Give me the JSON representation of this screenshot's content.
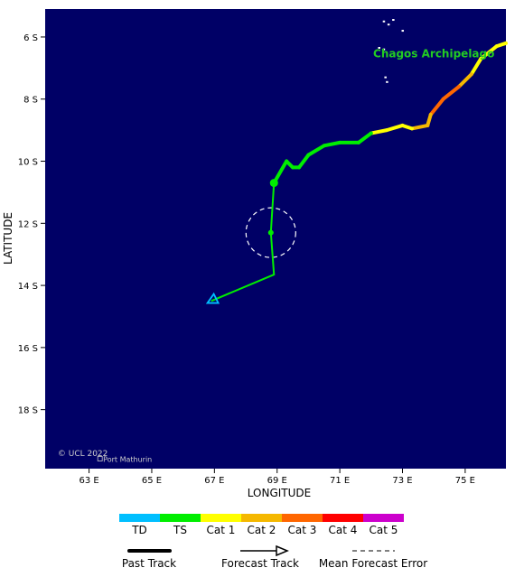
{
  "map": {
    "background_color": "#000066",
    "xlabel": "LONGITUDE",
    "ylabel": "LATITUDE",
    "lon_range": [
      61.6,
      76.3
    ],
    "lat_range": [
      -19.9,
      -5.1
    ],
    "lon_ticks": [
      {
        "value": 63,
        "label": "63 E"
      },
      {
        "value": 65,
        "label": "65 E"
      },
      {
        "value": 67,
        "label": "67 E"
      },
      {
        "value": 69,
        "label": "69 E"
      },
      {
        "value": 71,
        "label": "71 E"
      },
      {
        "value": 73,
        "label": "73 E"
      },
      {
        "value": 75,
        "label": "75 E"
      }
    ],
    "lat_ticks": [
      {
        "value": -6,
        "label": "6 S"
      },
      {
        "value": -8,
        "label": "8 S"
      },
      {
        "value": -10,
        "label": "10 S"
      },
      {
        "value": -12,
        "label": "12 S"
      },
      {
        "value": -14,
        "label": "14 S"
      },
      {
        "value": -16,
        "label": "16 S"
      },
      {
        "value": -18,
        "label": "18 S"
      }
    ],
    "region_label": {
      "text": "Chagos Archipelago",
      "lon": 74.0,
      "lat": -6.65,
      "color": "#22cc22"
    },
    "place_label": {
      "text": "Port Mathurin",
      "lon": 63.45,
      "lat": -19.68
    },
    "copyright": {
      "text": "© UCL 2022",
      "lon": 62.0,
      "lat": -19.5
    },
    "islands": [
      {
        "lon": 72.4,
        "lat": -5.5
      },
      {
        "lon": 72.7,
        "lat": -5.45
      },
      {
        "lon": 72.55,
        "lat": -5.6
      },
      {
        "lon": 73.0,
        "lat": -5.8
      },
      {
        "lon": 72.4,
        "lat": -6.4
      },
      {
        "lon": 72.25,
        "lat": -6.35
      },
      {
        "lon": 72.45,
        "lat": -7.3
      },
      {
        "lon": 72.5,
        "lat": -7.45
      }
    ]
  },
  "track": {
    "past": [
      {
        "lon": 76.3,
        "lat": -6.2,
        "cat": "Cat 1"
      },
      {
        "lon": 76.0,
        "lat": -6.3,
        "cat": "Cat 1"
      },
      {
        "lon": 75.5,
        "lat": -6.7,
        "cat": "Cat 1"
      },
      {
        "lon": 75.2,
        "lat": -7.2,
        "cat": "Cat 2"
      },
      {
        "lon": 74.8,
        "lat": -7.6,
        "cat": "Cat 3"
      },
      {
        "lon": 74.3,
        "lat": -8.0,
        "cat": "Cat 3"
      },
      {
        "lon": 73.9,
        "lat": -8.5,
        "cat": "Cat 2"
      },
      {
        "lon": 73.8,
        "lat": -8.85,
        "cat": "Cat 2"
      },
      {
        "lon": 73.3,
        "lat": -8.95,
        "cat": "Cat 1"
      },
      {
        "lon": 73.0,
        "lat": -8.85,
        "cat": "Cat 1"
      },
      {
        "lon": 72.5,
        "lat": -9.0,
        "cat": "Cat 1"
      },
      {
        "lon": 72.0,
        "lat": -9.1,
        "cat": "TS"
      },
      {
        "lon": 71.6,
        "lat": -9.4,
        "cat": "TS"
      },
      {
        "lon": 71.0,
        "lat": -9.4,
        "cat": "TS"
      },
      {
        "lon": 70.5,
        "lat": -9.5,
        "cat": "TS"
      },
      {
        "lon": 70.0,
        "lat": -9.8,
        "cat": "TS"
      },
      {
        "lon": 69.7,
        "lat": -10.2,
        "cat": "TS"
      },
      {
        "lon": 69.5,
        "lat": -10.2,
        "cat": "TS"
      },
      {
        "lon": 69.3,
        "lat": -10.0,
        "cat": "TS"
      },
      {
        "lon": 68.9,
        "lat": -10.7,
        "cat": "TS"
      }
    ],
    "current": {
      "lon": 68.9,
      "lat": -10.7
    },
    "forecast": [
      {
        "lon": 68.9,
        "lat": -10.7
      },
      {
        "lon": 68.8,
        "lat": -12.3
      },
      {
        "lon": 68.9,
        "lat": -13.65
      },
      {
        "lon": 66.9,
        "lat": -14.5
      }
    ],
    "forecast_point": {
      "lon": 68.8,
      "lat": -12.3
    },
    "error_circle": {
      "lon": 68.8,
      "lat": -12.3,
      "radius_deg": 0.8
    },
    "end_marker": {
      "lon": 66.95,
      "lat": -14.45,
      "color": "#00bfff"
    }
  },
  "legend": {
    "categories": [
      {
        "label": "TD",
        "color": "#00bfff"
      },
      {
        "label": "TS",
        "color": "#00ee00"
      },
      {
        "label": "Cat 1",
        "color": "#ffff00"
      },
      {
        "label": "Cat 2",
        "color": "#f5b800"
      },
      {
        "label": "Cat 3",
        "color": "#ff6600"
      },
      {
        "label": "Cat 4",
        "color": "#ff0000"
      },
      {
        "label": "Cat 5",
        "color": "#cc00cc"
      }
    ],
    "past_track_label": "Past Track",
    "forecast_track_label": "Forecast Track",
    "error_label": "Mean Forecast Error"
  }
}
